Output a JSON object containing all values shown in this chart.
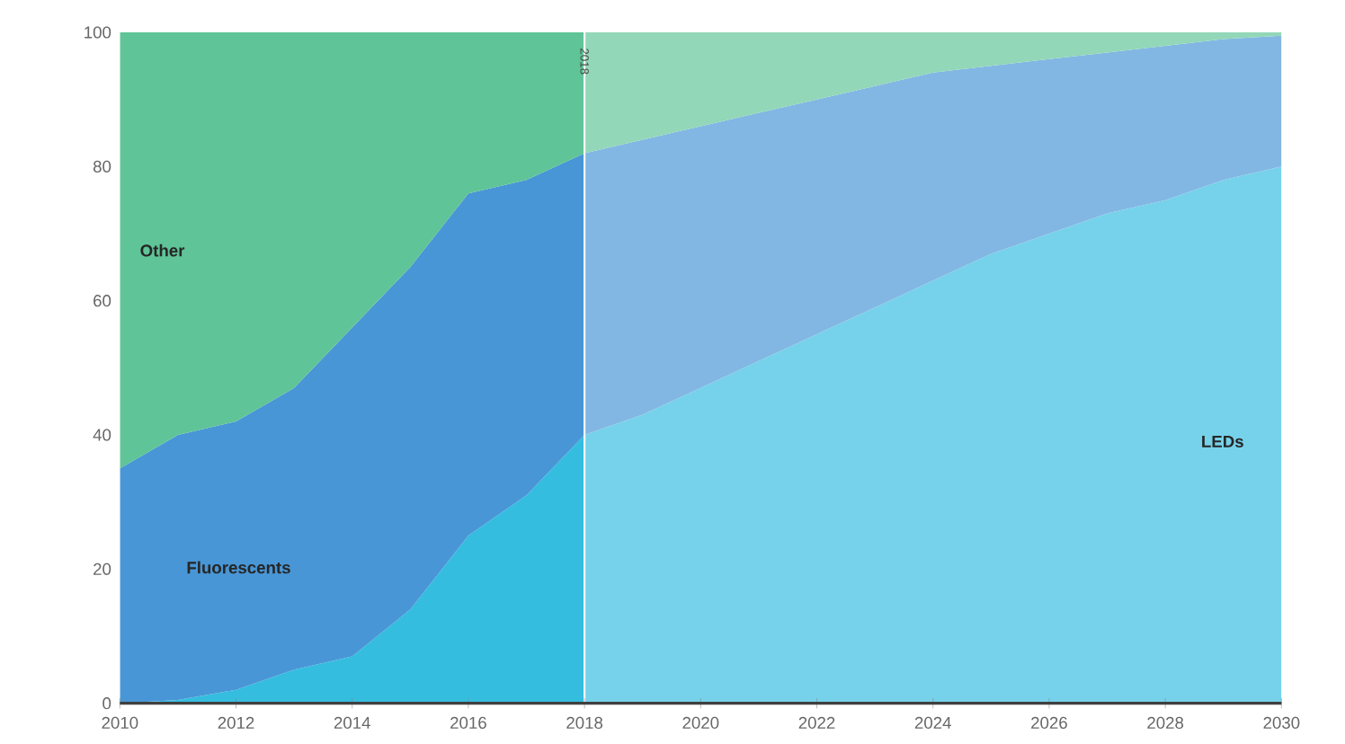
{
  "chart_data": {
    "type": "area",
    "stacked": true,
    "grid": false,
    "x": [
      2010,
      2011,
      2012,
      2013,
      2014,
      2015,
      2016,
      2017,
      2018,
      2019,
      2020,
      2021,
      2022,
      2023,
      2024,
      2025,
      2026,
      2027,
      2028,
      2029,
      2030
    ],
    "series": [
      {
        "name": "LEDs",
        "color": "#35bde0",
        "values": [
          0,
          0.5,
          2,
          5,
          7,
          14,
          25,
          31,
          40,
          43,
          47,
          51,
          55,
          59,
          63,
          67,
          70,
          73,
          75,
          78,
          80
        ]
      },
      {
        "name": "Fluorescents",
        "color": "#4896d6",
        "values": [
          35,
          39.5,
          40,
          42,
          49,
          51,
          51,
          47,
          42,
          41,
          39,
          37,
          35,
          33,
          31,
          28,
          26,
          24,
          23,
          21,
          19.5
        ]
      },
      {
        "name": "Other",
        "color": "#5fc497",
        "values": [
          65,
          60,
          58,
          53,
          44,
          35,
          24,
          22,
          18,
          16,
          14,
          12,
          10,
          8,
          6,
          5,
          4,
          3,
          2,
          1,
          0.5
        ]
      }
    ],
    "xlim": [
      2010,
      2030
    ],
    "xticks": [
      2010,
      2012,
      2014,
      2016,
      2018,
      2020,
      2022,
      2024,
      2026,
      2028,
      2030
    ],
    "ylim": [
      0,
      100
    ],
    "yticks": [
      0,
      20,
      40,
      60,
      80,
      100
    ],
    "ref_lines": [
      {
        "axis": "x",
        "value": 2018,
        "label": "2018"
      }
    ],
    "bands": [
      {
        "axis": "x",
        "from": 2018,
        "to": 2030,
        "color": "#ffffff"
      }
    ]
  }
}
